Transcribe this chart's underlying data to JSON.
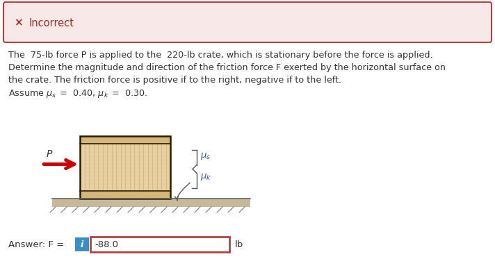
{
  "incorrect_bg": "#f9e8e8",
  "incorrect_border": "#b94040",
  "incorrect_text": "Incorrect",
  "incorrect_x_color": "#a03030",
  "answer_value": "-88.0",
  "answer_unit": "lb",
  "bg_color": "#ffffff",
  "answer_box_border": "#b94040",
  "info_btn_color": "#3a8ec4",
  "figure_crate_fill": "#e8d0a0",
  "figure_crate_band": "#d4b87a",
  "figure_crate_border": "#2a1a00",
  "figure_crate_line": "#c8b080",
  "figure_ground_fill": "#c8b89a",
  "figure_ground_border": "#888888",
  "arrow_color": "#cc0000",
  "text_color": "#333333",
  "brace_color": "#555555"
}
